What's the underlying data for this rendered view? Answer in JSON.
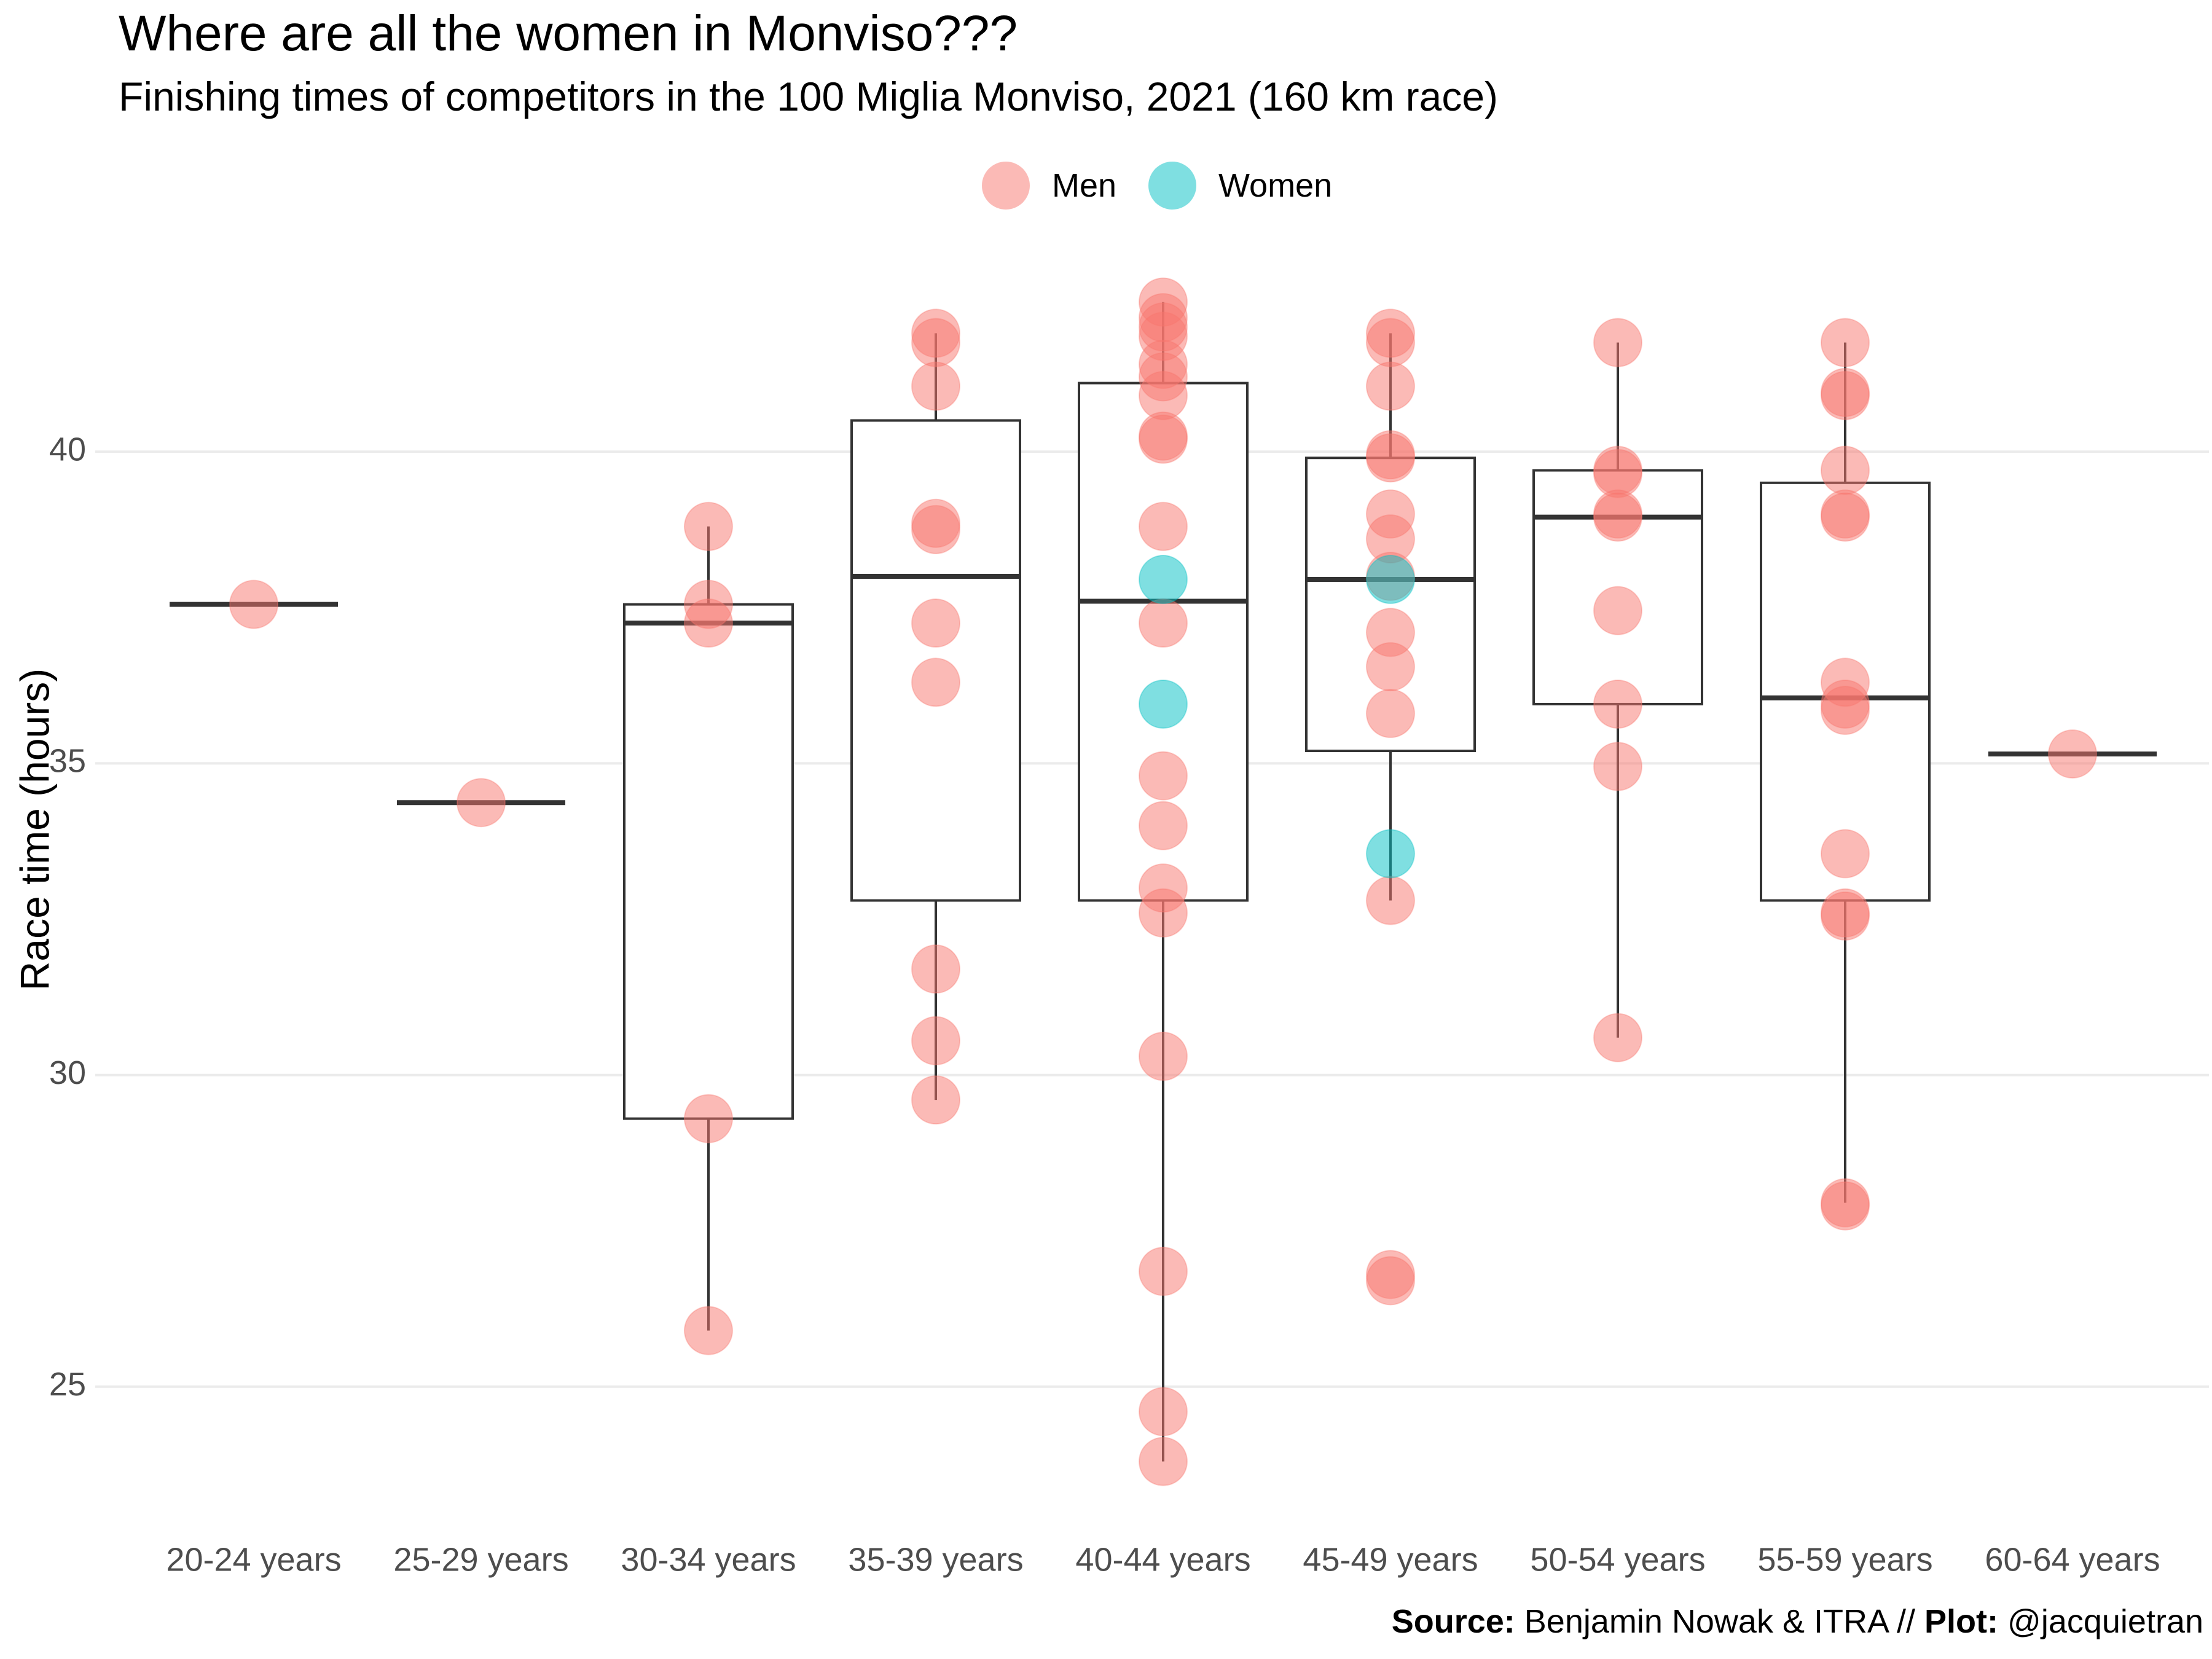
{
  "title": "Where are all the women in Monviso???",
  "subtitle": "Finishing times of competitors in the 100 Miglia Monviso, 2021 (160 km race)",
  "legend": [
    {
      "label": "Men",
      "color": "#F8766D"
    },
    {
      "label": "Women",
      "color": "#00BFC4"
    }
  ],
  "caption": {
    "source_label": "Source:",
    "source_text": " Benjamin Nowak & ITRA // ",
    "plot_label": "Plot:",
    "plot_text": " @jacquietran"
  },
  "chart_data": {
    "type": "box",
    "ylabel": "Race time (hours)",
    "xlabel": "",
    "ylim": [
      22.8,
      43.5
    ],
    "yticks": [
      25,
      30,
      35,
      40
    ],
    "grid": true,
    "legend_position": "top",
    "categories": [
      "20-24 years",
      "25-29 years",
      "30-34 years",
      "35-39 years",
      "40-44 years",
      "45-49 years",
      "50-54 years",
      "55-59 years",
      "60-64 years"
    ],
    "boxes": [
      {
        "q1": 37.55,
        "median": 37.55,
        "q3": 37.55,
        "min": 37.55,
        "max": 37.55
      },
      {
        "q1": 34.37,
        "median": 34.37,
        "q3": 34.37,
        "min": 34.37,
        "max": 34.37
      },
      {
        "q1": 29.3,
        "median": 37.25,
        "q3": 37.55,
        "min": 25.9,
        "max": 38.8
      },
      {
        "q1": 32.8,
        "median": 38.0,
        "q3": 40.5,
        "min": 29.6,
        "max": 41.9
      },
      {
        "q1": 32.8,
        "median": 37.6,
        "q3": 41.1,
        "min": 23.8,
        "max": 42.4
      },
      {
        "q1": 35.2,
        "median": 37.95,
        "q3": 39.9,
        "min": 32.8,
        "max": 41.9
      },
      {
        "q1": 35.95,
        "median": 38.95,
        "q3": 39.7,
        "min": 30.6,
        "max": 41.75
      },
      {
        "q1": 32.8,
        "median": 36.05,
        "q3": 39.5,
        "min": 27.95,
        "max": 41.75
      },
      {
        "q1": 35.15,
        "median": 35.15,
        "q3": 35.15,
        "min": 35.15,
        "max": 35.15
      }
    ],
    "series": [
      {
        "name": "Men",
        "color": "#F8766D",
        "points": [
          [
            "20-24 years",
            37.55
          ],
          [
            "25-29 years",
            34.37
          ],
          [
            "30-34 years",
            38.8
          ],
          [
            "30-34 years",
            37.55
          ],
          [
            "30-34 years",
            37.25
          ],
          [
            "30-34 years",
            29.3
          ],
          [
            "30-34 years",
            25.9
          ],
          [
            "35-39 years",
            41.9
          ],
          [
            "35-39 years",
            41.75
          ],
          [
            "35-39 years",
            41.05
          ],
          [
            "35-39 years",
            38.85
          ],
          [
            "35-39 years",
            38.75
          ],
          [
            "35-39 years",
            37.25
          ],
          [
            "35-39 years",
            36.3
          ],
          [
            "35-39 years",
            31.7
          ],
          [
            "35-39 years",
            30.55
          ],
          [
            "35-39 years",
            29.6
          ],
          [
            "40-44 years",
            42.4
          ],
          [
            "40-44 years",
            42.15
          ],
          [
            "40-44 years",
            42.0
          ],
          [
            "40-44 years",
            41.85
          ],
          [
            "40-44 years",
            41.4
          ],
          [
            "40-44 years",
            41.2
          ],
          [
            "40-44 years",
            40.9
          ],
          [
            "40-44 years",
            40.25
          ],
          [
            "40-44 years",
            40.2
          ],
          [
            "40-44 years",
            38.8
          ],
          [
            "40-44 years",
            37.25
          ],
          [
            "40-44 years",
            34.8
          ],
          [
            "40-44 years",
            34.0
          ],
          [
            "40-44 years",
            33.0
          ],
          [
            "40-44 years",
            32.6
          ],
          [
            "40-44 years",
            30.3
          ],
          [
            "40-44 years",
            26.85
          ],
          [
            "40-44 years",
            24.6
          ],
          [
            "40-44 years",
            23.8
          ],
          [
            "45-49 years",
            41.9
          ],
          [
            "45-49 years",
            41.75
          ],
          [
            "45-49 years",
            41.05
          ],
          [
            "45-49 years",
            39.95
          ],
          [
            "45-49 years",
            39.9
          ],
          [
            "45-49 years",
            39.0
          ],
          [
            "45-49 years",
            38.6
          ],
          [
            "45-49 years",
            38.0
          ],
          [
            "45-49 years",
            37.1
          ],
          [
            "45-49 years",
            36.55
          ],
          [
            "45-49 years",
            35.8
          ],
          [
            "45-49 years",
            32.8
          ],
          [
            "45-49 years",
            26.8
          ],
          [
            "45-49 years",
            26.7
          ],
          [
            "50-54 years",
            41.75
          ],
          [
            "50-54 years",
            39.7
          ],
          [
            "50-54 years",
            39.65
          ],
          [
            "50-54 years",
            39.0
          ],
          [
            "50-54 years",
            38.95
          ],
          [
            "50-54 years",
            37.45
          ],
          [
            "50-54 years",
            35.95
          ],
          [
            "50-54 years",
            34.95
          ],
          [
            "50-54 years",
            30.6
          ],
          [
            "55-59 years",
            41.75
          ],
          [
            "55-59 years",
            40.95
          ],
          [
            "55-59 years",
            40.9
          ],
          [
            "55-59 years",
            39.7
          ],
          [
            "55-59 years",
            39.0
          ],
          [
            "55-59 years",
            38.95
          ],
          [
            "55-59 years",
            36.3
          ],
          [
            "55-59 years",
            35.95
          ],
          [
            "55-59 years",
            35.85
          ],
          [
            "55-59 years",
            33.55
          ],
          [
            "55-59 years",
            32.6
          ],
          [
            "55-59 years",
            32.55
          ],
          [
            "55-59 years",
            27.95
          ],
          [
            "55-59 years",
            27.9
          ],
          [
            "60-64 years",
            35.15
          ]
        ]
      },
      {
        "name": "Women",
        "color": "#00BFC4",
        "points": [
          [
            "40-44 years",
            37.95
          ],
          [
            "40-44 years",
            35.95
          ],
          [
            "45-49 years",
            37.95
          ],
          [
            "45-49 years",
            33.55
          ]
        ]
      }
    ]
  }
}
